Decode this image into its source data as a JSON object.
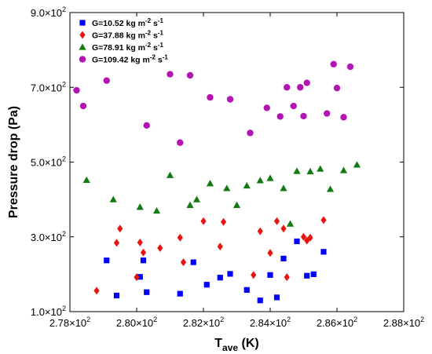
{
  "chart_data": {
    "type": "scatter",
    "title": "",
    "xlabel": "T",
    "xlabel_sub": "ave",
    "xlabel_unit": " (K)",
    "ylabel": "Pressure drop (Pa)",
    "xlim": [
      278,
      288
    ],
    "ylim": [
      100,
      900
    ],
    "x_tick_values": [
      278,
      280,
      282,
      284,
      286,
      288
    ],
    "x_ticks": [
      "2.78",
      "2.80",
      "2.82",
      "2.84",
      "2.86",
      "2.88"
    ],
    "x_tick_exp": "2",
    "y_tick_values": [
      100,
      300,
      500,
      700,
      900
    ],
    "y_ticks": [
      "1.0",
      "3.0",
      "5.0",
      "7.0",
      "9.0"
    ],
    "y_tick_exp": "2",
    "tick_mult": "x10",
    "grid": false,
    "legend_position": "top-left",
    "series": [
      {
        "name": "G=10.52 kg m-2 s-1",
        "legend_parts": [
          "G=10.52 kg m",
          "-2",
          " s",
          "-1"
        ],
        "marker": "square",
        "color": "#0000ff",
        "points": [
          [
            279.1,
            237
          ],
          [
            279.4,
            143
          ],
          [
            280.1,
            193
          ],
          [
            280.2,
            237
          ],
          [
            280.3,
            152
          ],
          [
            281.3,
            148
          ],
          [
            281.7,
            232
          ],
          [
            282.1,
            172
          ],
          [
            282.5,
            191
          ],
          [
            282.8,
            201
          ],
          [
            283.3,
            158
          ],
          [
            283.7,
            130
          ],
          [
            284.0,
            198
          ],
          [
            284.2,
            138
          ],
          [
            284.4,
            242
          ],
          [
            284.8,
            288
          ],
          [
            285.1,
            196
          ],
          [
            285.3,
            200
          ],
          [
            285.6,
            260
          ]
        ]
      },
      {
        "name": "G=37.88 kg m-2 s-1",
        "legend_parts": [
          "G=37.88 kg m",
          "-2",
          " s",
          "-1"
        ],
        "marker": "diamond",
        "color": "#e8140f",
        "points": [
          [
            278.8,
            156
          ],
          [
            279.4,
            284
          ],
          [
            279.5,
            322
          ],
          [
            280.0,
            192
          ],
          [
            280.1,
            285
          ],
          [
            280.2,
            258
          ],
          [
            280.7,
            270
          ],
          [
            281.3,
            298
          ],
          [
            281.4,
            232
          ],
          [
            282.0,
            342
          ],
          [
            282.5,
            274
          ],
          [
            282.6,
            340
          ],
          [
            283.5,
            198
          ],
          [
            283.7,
            315
          ],
          [
            284.0,
            257
          ],
          [
            284.2,
            342
          ],
          [
            284.4,
            322
          ],
          [
            284.5,
            192
          ],
          [
            285.0,
            300
          ],
          [
            285.1,
            290
          ],
          [
            285.2,
            298
          ],
          [
            285.6,
            345
          ]
        ]
      },
      {
        "name": "G=78.91 kg m-2 s-1",
        "legend_parts": [
          "G=78.91 kg m",
          "-2",
          " s",
          "-1"
        ],
        "marker": "triangle",
        "color": "#137a13",
        "points": [
          [
            278.5,
            452
          ],
          [
            279.3,
            400
          ],
          [
            280.1,
            380
          ],
          [
            280.6,
            370
          ],
          [
            281.0,
            465
          ],
          [
            281.6,
            385
          ],
          [
            281.8,
            400
          ],
          [
            282.2,
            443
          ],
          [
            282.7,
            430
          ],
          [
            283.0,
            385
          ],
          [
            283.3,
            437
          ],
          [
            283.7,
            451
          ],
          [
            284.0,
            457
          ],
          [
            284.4,
            430
          ],
          [
            284.6,
            335
          ],
          [
            284.8,
            476
          ],
          [
            285.2,
            475
          ],
          [
            285.5,
            482
          ],
          [
            285.8,
            428
          ],
          [
            286.2,
            478
          ],
          [
            286.6,
            493
          ]
        ]
      },
      {
        "name": "G=109.42 kg m-2 s-1",
        "legend_parts": [
          "G=109.42 kg m",
          "-2",
          " s",
          "-1"
        ],
        "marker": "circle",
        "color": "#b514b5",
        "points": [
          [
            278.2,
            692
          ],
          [
            278.4,
            650
          ],
          [
            279.1,
            718
          ],
          [
            280.3,
            598
          ],
          [
            281.0,
            735
          ],
          [
            281.3,
            552
          ],
          [
            281.6,
            732
          ],
          [
            282.2,
            673
          ],
          [
            282.8,
            668
          ],
          [
            283.4,
            578
          ],
          [
            283.9,
            645
          ],
          [
            284.3,
            622
          ],
          [
            284.5,
            700
          ],
          [
            284.7,
            650
          ],
          [
            284.9,
            700
          ],
          [
            285.0,
            623
          ],
          [
            285.1,
            712
          ],
          [
            285.7,
            630
          ],
          [
            285.9,
            762
          ],
          [
            286.0,
            698
          ],
          [
            286.2,
            620
          ],
          [
            286.4,
            755
          ]
        ]
      }
    ]
  }
}
